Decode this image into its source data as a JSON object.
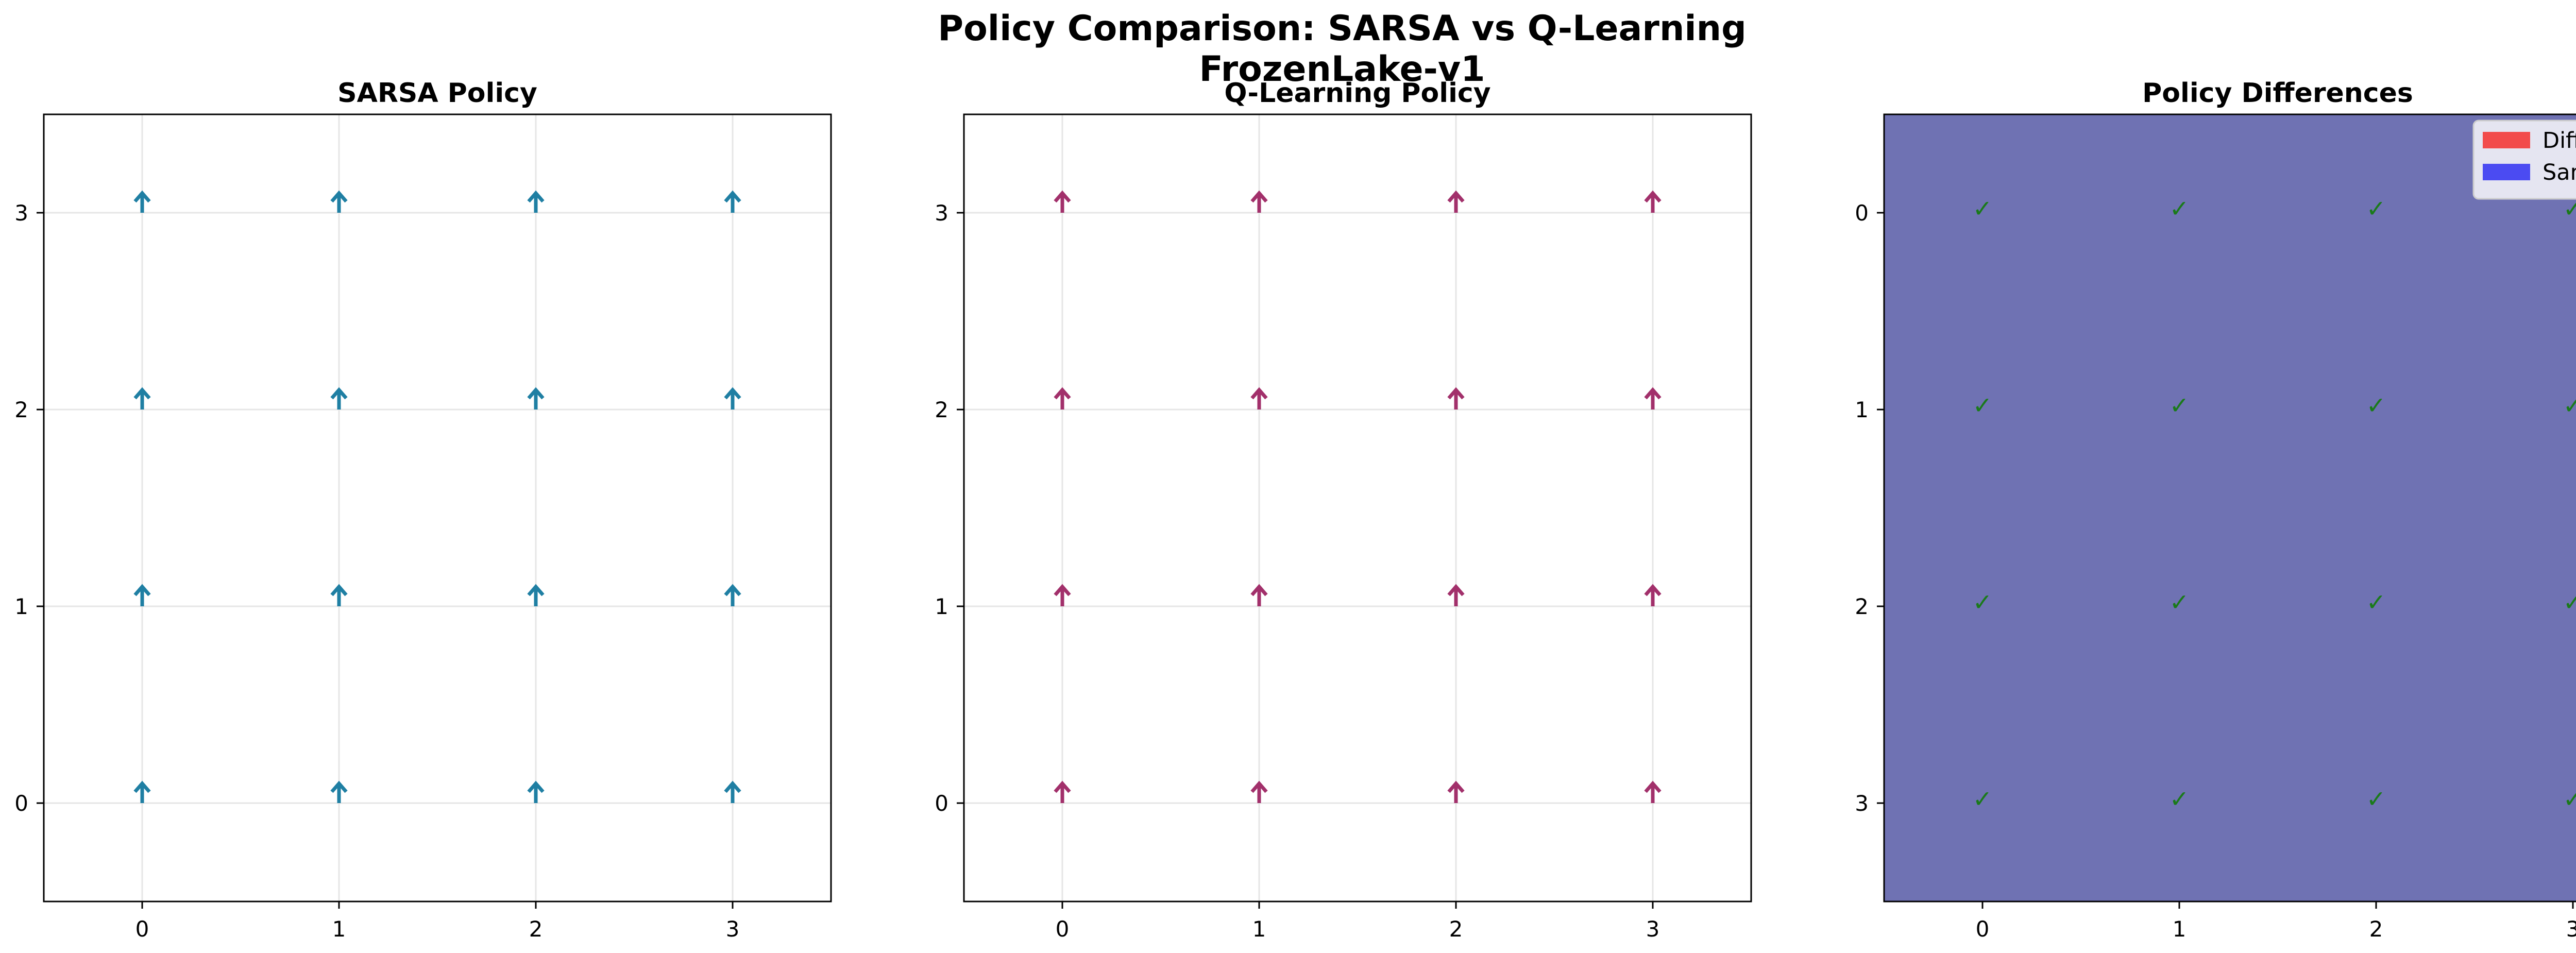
{
  "figure": {
    "title_line1": "Policy Comparison: SARSA vs Q-Learning",
    "title_line2": "FrozenLake-v1"
  },
  "chart_data": [
    {
      "type": "quiver",
      "title": "SARSA Policy",
      "xlim": [
        -0.5,
        3.5
      ],
      "ylim": [
        -0.5,
        3.5
      ],
      "xticks": [
        "0",
        "1",
        "2",
        "3"
      ],
      "yticks": [
        "0",
        "1",
        "2",
        "3"
      ],
      "grid": true,
      "arrow_color": "#1f7fa3",
      "policy": [
        [
          "up",
          "up",
          "up",
          "up"
        ],
        [
          "up",
          "up",
          "up",
          "up"
        ],
        [
          "up",
          "up",
          "up",
          "up"
        ],
        [
          "up",
          "up",
          "up",
          "up"
        ]
      ]
    },
    {
      "type": "quiver",
      "title": "Q-Learning Policy",
      "xlim": [
        -0.5,
        3.5
      ],
      "ylim": [
        -0.5,
        3.5
      ],
      "xticks": [
        "0",
        "1",
        "2",
        "3"
      ],
      "yticks": [
        "0",
        "1",
        "2",
        "3"
      ],
      "grid": true,
      "arrow_color": "#a2306b",
      "policy": [
        [
          "up",
          "up",
          "up",
          "up"
        ],
        [
          "up",
          "up",
          "up",
          "up"
        ],
        [
          "up",
          "up",
          "up",
          "up"
        ],
        [
          "up",
          "up",
          "up",
          "up"
        ]
      ]
    },
    {
      "type": "heatmap",
      "title": "Policy Differences",
      "xticks": [
        "0",
        "1",
        "2",
        "3"
      ],
      "yticks": [
        "0",
        "1",
        "2",
        "3"
      ],
      "fill_color": "#6f72b3",
      "mark_color": "#1a7a1a",
      "mark_symbol": "✓",
      "same": [
        [
          true,
          true,
          true,
          true
        ],
        [
          true,
          true,
          true,
          true
        ],
        [
          true,
          true,
          true,
          true
        ],
        [
          true,
          true,
          true,
          true
        ]
      ],
      "legend": {
        "location": "upper right",
        "entries": [
          {
            "label": "Different",
            "color": "#f24b4b"
          },
          {
            "label": "Same",
            "color": "#4b4bf2"
          }
        ]
      }
    }
  ]
}
